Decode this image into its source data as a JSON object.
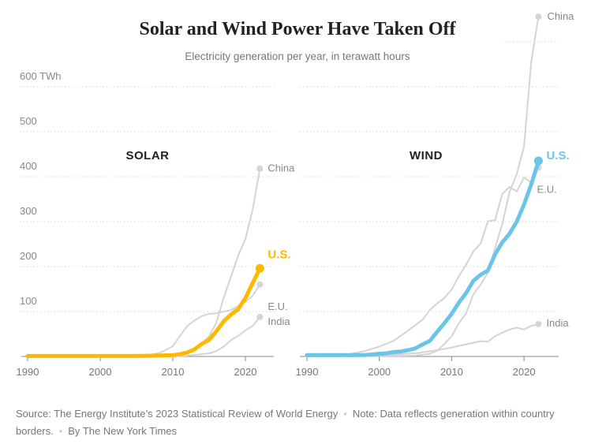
{
  "chart_data": [
    {
      "type": "line",
      "panel": "solar",
      "title": "SOLAR",
      "xlabel": "",
      "ylabel": "TWh",
      "xlim": [
        1990,
        2023
      ],
      "ylim": [
        0,
        600
      ],
      "x_ticks": [
        1990,
        2000,
        2010,
        2020
      ],
      "y_ticks": [
        100,
        200,
        300,
        400,
        500,
        600
      ],
      "grid": true,
      "highlight_color": "#FDB800",
      "series": [
        {
          "name": "China",
          "label": "China",
          "highlight": false,
          "x": [
            1990,
            2000,
            2008,
            2010,
            2011,
            2012,
            2013,
            2014,
            2015,
            2016,
            2017,
            2018,
            2019,
            2020,
            2021,
            2022
          ],
          "y": [
            0,
            0,
            0,
            1,
            3,
            6,
            15,
            29,
            45,
            75,
            130,
            177,
            224,
            261,
            327,
            418
          ]
        },
        {
          "name": "E.U.",
          "label": "E.U.",
          "highlight": false,
          "x": [
            1990,
            2000,
            2005,
            2007,
            2008,
            2009,
            2010,
            2011,
            2012,
            2013,
            2014,
            2015,
            2016,
            2017,
            2018,
            2019,
            2020,
            2021,
            2022
          ],
          "y": [
            0,
            0,
            1,
            4,
            7,
            14,
            23,
            46,
            68,
            80,
            90,
            95,
            96,
            100,
            103,
            112,
            121,
            135,
            160
          ]
        },
        {
          "name": "India",
          "label": "India",
          "highlight": false,
          "x": [
            1990,
            2010,
            2012,
            2014,
            2015,
            2016,
            2017,
            2018,
            2019,
            2020,
            2021,
            2022
          ],
          "y": [
            0,
            0,
            2,
            5,
            7,
            12,
            22,
            36,
            46,
            58,
            68,
            88
          ]
        },
        {
          "name": "U.S.",
          "label": "U.S.",
          "highlight": true,
          "x": [
            1990,
            2000,
            2005,
            2008,
            2010,
            2011,
            2012,
            2013,
            2014,
            2015,
            2016,
            2017,
            2018,
            2019,
            2020,
            2021,
            2022
          ],
          "y": [
            1,
            1,
            1,
            2,
            3,
            5,
            9,
            16,
            28,
            37,
            56,
            78,
            93,
            105,
            130,
            163,
            196
          ]
        }
      ]
    },
    {
      "type": "line",
      "panel": "wind",
      "title": "WIND",
      "xlabel": "",
      "ylabel": "TWh",
      "xlim": [
        1990,
        2023
      ],
      "ylim": [
        0,
        760
      ],
      "x_ticks": [
        1990,
        2000,
        2010,
        2020
      ],
      "y_ticks": [
        100,
        200,
        300,
        400,
        500,
        600,
        700
      ],
      "grid": true,
      "highlight_color": "#6CC4E6",
      "series": [
        {
          "name": "China",
          "label": "China",
          "highlight": false,
          "x": [
            1990,
            2000,
            2005,
            2006,
            2007,
            2008,
            2009,
            2010,
            2011,
            2012,
            2013,
            2014,
            2015,
            2016,
            2017,
            2018,
            2019,
            2020,
            2021,
            2022
          ],
          "y": [
            0,
            1,
            2,
            4,
            6,
            13,
            28,
            45,
            74,
            96,
            138,
            160,
            186,
            241,
            295,
            366,
            406,
            467,
            656,
            756
          ]
        },
        {
          "name": "E.U.",
          "label": "E.U.",
          "highlight": false,
          "x": [
            1990,
            1995,
            1998,
            2000,
            2002,
            2004,
            2005,
            2006,
            2007,
            2008,
            2009,
            2010,
            2011,
            2012,
            2013,
            2014,
            2015,
            2016,
            2017,
            2018,
            2019,
            2020,
            2021,
            2022
          ],
          "y": [
            1,
            3,
            12,
            22,
            35,
            58,
            70,
            82,
            104,
            118,
            130,
            149,
            179,
            204,
            234,
            251,
            301,
            303,
            362,
            377,
            367,
            398,
            387,
            420
          ]
        },
        {
          "name": "India",
          "label": "India",
          "highlight": false,
          "x": [
            1990,
            2000,
            2005,
            2008,
            2010,
            2012,
            2014,
            2015,
            2016,
            2017,
            2018,
            2019,
            2020,
            2021,
            2022
          ],
          "y": [
            0,
            2,
            7,
            14,
            20,
            27,
            34,
            33,
            45,
            53,
            60,
            64,
            60,
            68,
            72
          ]
        },
        {
          "name": "U.S.",
          "label": "U.S.",
          "highlight": true,
          "x": [
            1990,
            1995,
            1998,
            2000,
            2001,
            2002,
            2003,
            2004,
            2005,
            2006,
            2007,
            2008,
            2009,
            2010,
            2011,
            2012,
            2013,
            2014,
            2015,
            2016,
            2017,
            2018,
            2019,
            2020,
            2021,
            2022
          ],
          "y": [
            3,
            3,
            3,
            6,
            7,
            10,
            11,
            14,
            18,
            27,
            35,
            55,
            74,
            95,
            120,
            141,
            168,
            182,
            191,
            227,
            254,
            273,
            300,
            338,
            383,
            435
          ]
        }
      ]
    }
  ],
  "header": {
    "title": "Solar and Wind Power Have Taken Off",
    "subtitle": "Electricity generation per year, in terawatt hours"
  },
  "axis": {
    "y_unit_suffix": " TWh"
  },
  "footer": {
    "source": "Source: The Energy Institute’s 2023 Statistical Review of World Energy",
    "note": "Note: Data reflects generation within country borders.",
    "byline": "By The New York Times",
    "separator": "•"
  }
}
